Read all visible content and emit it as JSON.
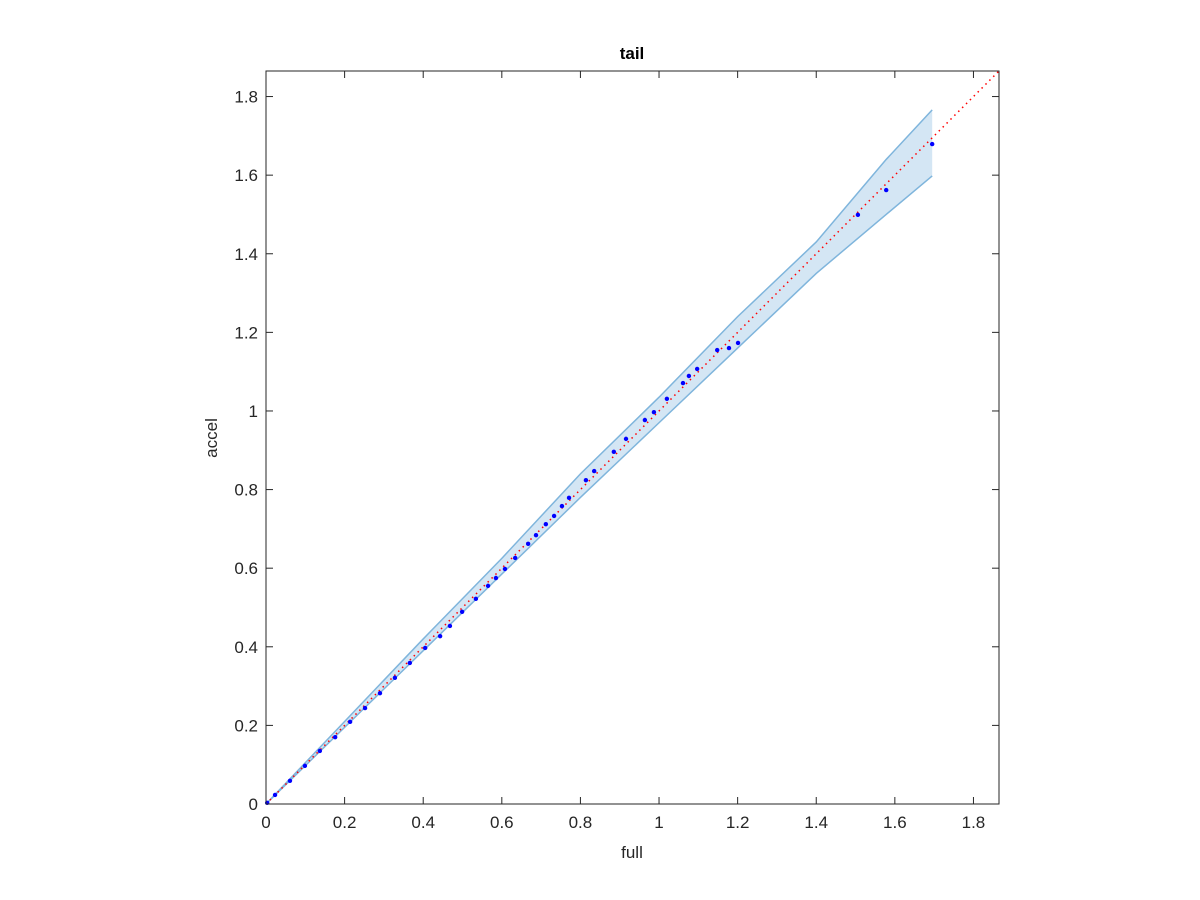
{
  "chart_data": {
    "type": "scatter",
    "title": "tail",
    "x_label": "full",
    "y_label": "accel",
    "x": [
      0.003,
      0.023,
      0.061,
      0.099,
      0.137,
      0.176,
      0.214,
      0.252,
      0.29,
      0.328,
      0.366,
      0.405,
      0.443,
      0.468,
      0.499,
      0.534,
      0.565,
      0.585,
      0.608,
      0.634,
      0.667,
      0.687,
      0.712,
      0.733,
      0.753,
      0.771,
      0.814,
      0.835,
      0.885,
      0.916,
      0.964,
      0.987,
      1.02,
      1.061,
      1.076,
      1.097,
      1.148,
      1.178,
      1.201,
      1.506,
      1.578,
      1.695
    ],
    "values": [
      0.003,
      0.023,
      0.059,
      0.097,
      0.135,
      0.17,
      0.209,
      0.244,
      0.282,
      0.321,
      0.359,
      0.397,
      0.427,
      0.453,
      0.489,
      0.522,
      0.555,
      0.575,
      0.598,
      0.626,
      0.662,
      0.684,
      0.712,
      0.733,
      0.758,
      0.779,
      0.824,
      0.847,
      0.896,
      0.929,
      0.977,
      0.997,
      1.031,
      1.071,
      1.089,
      1.107,
      1.155,
      1.16,
      1.173,
      1.499,
      1.562,
      1.679
    ],
    "color": "#0000ff",
    "band": {
      "x": [
        0,
        0.2,
        0.4,
        0.6,
        0.8,
        1.0,
        1.2,
        1.4,
        1.578,
        1.695
      ],
      "upper": [
        0,
        0.21,
        0.42,
        0.625,
        0.84,
        1.035,
        1.24,
        1.43,
        1.64,
        1.766
      ],
      "lower": [
        0,
        0.195,
        0.39,
        0.585,
        0.78,
        0.97,
        1.16,
        1.35,
        1.5,
        1.598
      ],
      "color": "#7fb5dc",
      "fill": "#d4e6f4"
    },
    "reference": {
      "x": [
        0,
        1.865
      ],
      "values": [
        0,
        1.865
      ],
      "color": "#ff0000"
    },
    "xlim": [
      0,
      1.865
    ],
    "ylim": [
      0,
      1.865
    ],
    "xticks": [
      0,
      0.2,
      0.4,
      0.6,
      0.8,
      1,
      1.2,
      1.4,
      1.6,
      1.8
    ],
    "yticks": [
      0,
      0.2,
      0.4,
      0.6,
      0.8,
      1,
      1.2,
      1.4,
      1.6,
      1.8
    ]
  }
}
